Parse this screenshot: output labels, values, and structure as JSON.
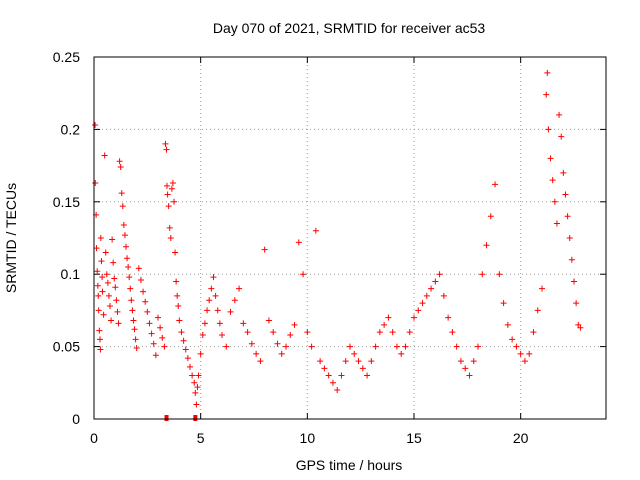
{
  "chart_data": {
    "type": "scatter",
    "title": "Day 070 of 2021, SRMTID for receiver ac53",
    "xlabel": "GPS time / hours",
    "ylabel": "SRMTID / TECUs",
    "xlim": [
      0,
      24
    ],
    "ylim": [
      0,
      0.25
    ],
    "x_ticks": [
      0,
      5,
      10,
      15,
      20
    ],
    "x_tick_labels": [
      "0",
      "5",
      "10",
      "15",
      "20"
    ],
    "y_ticks": [
      0,
      0.05,
      0.1,
      0.15,
      0.2,
      0.25
    ],
    "y_tick_labels": [
      "0",
      "0.05",
      "0.1",
      "0.15",
      "0.2",
      "0.25"
    ],
    "grid": true,
    "marker": "+",
    "color": "#ff0000",
    "zero_markers": [
      {
        "x": 3.4,
        "y": 0
      },
      {
        "x": 4.75,
        "y": 0
      }
    ],
    "series": [
      {
        "name": "SRMTID",
        "points": [
          [
            0.05,
            0.203
          ],
          [
            0.06,
            0.163
          ],
          [
            0.1,
            0.141
          ],
          [
            0.12,
            0.118
          ],
          [
            0.15,
            0.102
          ],
          [
            0.18,
            0.092
          ],
          [
            0.2,
            0.085
          ],
          [
            0.22,
            0.075
          ],
          [
            0.25,
            0.061
          ],
          [
            0.28,
            0.055
          ],
          [
            0.3,
            0.048
          ],
          [
            0.32,
            0.125
          ],
          [
            0.35,
            0.109
          ],
          [
            0.38,
            0.098
          ],
          [
            0.4,
            0.088
          ],
          [
            0.45,
            0.072
          ],
          [
            0.5,
            0.182
          ],
          [
            0.55,
            0.115
          ],
          [
            0.6,
            0.1
          ],
          [
            0.65,
            0.094
          ],
          [
            0.7,
            0.085
          ],
          [
            0.75,
            0.078
          ],
          [
            0.8,
            0.068
          ],
          [
            0.85,
            0.124
          ],
          [
            0.9,
            0.108
          ],
          [
            0.95,
            0.097
          ],
          [
            1.0,
            0.091
          ],
          [
            1.05,
            0.082
          ],
          [
            1.1,
            0.074
          ],
          [
            1.15,
            0.066
          ],
          [
            1.2,
            0.178
          ],
          [
            1.25,
            0.174
          ],
          [
            1.3,
            0.156
          ],
          [
            1.35,
            0.147
          ],
          [
            1.4,
            0.134
          ],
          [
            1.45,
            0.127
          ],
          [
            1.5,
            0.119
          ],
          [
            1.55,
            0.111
          ],
          [
            1.6,
            0.105
          ],
          [
            1.65,
            0.098
          ],
          [
            1.7,
            0.09
          ],
          [
            1.75,
            0.082
          ],
          [
            1.8,
            0.075
          ],
          [
            1.85,
            0.068
          ],
          [
            1.9,
            0.062
          ],
          [
            1.95,
            0.055
          ],
          [
            2.0,
            0.049
          ],
          [
            2.1,
            0.104
          ],
          [
            2.2,
            0.096
          ],
          [
            2.3,
            0.088
          ],
          [
            2.4,
            0.081
          ],
          [
            2.5,
            0.074
          ],
          [
            2.6,
            0.066
          ],
          [
            2.7,
            0.059
          ],
          [
            2.8,
            0.052
          ],
          [
            2.9,
            0.044
          ],
          [
            3.0,
            0.07
          ],
          [
            3.1,
            0.063
          ],
          [
            3.2,
            0.056
          ],
          [
            3.3,
            0.05
          ],
          [
            3.35,
            0.19
          ],
          [
            3.4,
            0.186
          ],
          [
            3.42,
            0.161
          ],
          [
            3.45,
            0.155
          ],
          [
            3.5,
            0.147
          ],
          [
            3.55,
            0.132
          ],
          [
            3.6,
            0.125
          ],
          [
            3.65,
            0.159
          ],
          [
            3.7,
            0.163
          ],
          [
            3.75,
            0.15
          ],
          [
            3.8,
            0.115
          ],
          [
            3.85,
            0.095
          ],
          [
            3.9,
            0.085
          ],
          [
            3.95,
            0.078
          ],
          [
            4.0,
            0.068
          ],
          [
            4.1,
            0.06
          ],
          [
            4.2,
            0.054
          ],
          [
            4.3,
            0.048
          ],
          [
            4.4,
            0.042
          ],
          [
            4.5,
            0.036
          ],
          [
            4.6,
            0.03
          ],
          [
            4.7,
            0.025
          ],
          [
            4.75,
            0.018
          ],
          [
            4.8,
            0.01
          ],
          [
            4.85,
            0.022
          ],
          [
            4.9,
            0.03
          ],
          [
            5.0,
            0.045
          ],
          [
            5.1,
            0.058
          ],
          [
            5.2,
            0.066
          ],
          [
            5.3,
            0.075
          ],
          [
            5.4,
            0.082
          ],
          [
            5.5,
            0.09
          ],
          [
            5.6,
            0.098
          ],
          [
            5.7,
            0.085
          ],
          [
            5.8,
            0.075
          ],
          [
            5.9,
            0.066
          ],
          [
            6.0,
            0.058
          ],
          [
            6.2,
            0.05
          ],
          [
            6.4,
            0.074
          ],
          [
            6.6,
            0.082
          ],
          [
            6.8,
            0.09
          ],
          [
            7.0,
            0.066
          ],
          [
            7.2,
            0.06
          ],
          [
            7.4,
            0.052
          ],
          [
            7.6,
            0.045
          ],
          [
            7.8,
            0.04
          ],
          [
            8.0,
            0.117
          ],
          [
            8.2,
            0.068
          ],
          [
            8.4,
            0.06
          ],
          [
            8.6,
            0.052
          ],
          [
            8.8,
            0.045
          ],
          [
            9.0,
            0.05
          ],
          [
            9.2,
            0.058
          ],
          [
            9.4,
            0.065
          ],
          [
            9.6,
            0.122
          ],
          [
            9.8,
            0.1
          ],
          [
            10.0,
            0.06
          ],
          [
            10.2,
            0.05
          ],
          [
            10.4,
            0.13
          ],
          [
            10.6,
            0.04
          ],
          [
            10.8,
            0.035
          ],
          [
            11.0,
            0.03
          ],
          [
            11.2,
            0.025
          ],
          [
            11.4,
            0.02
          ],
          [
            11.6,
            0.03
          ],
          [
            11.8,
            0.04
          ],
          [
            12.0,
            0.05
          ],
          [
            12.2,
            0.045
          ],
          [
            12.4,
            0.04
          ],
          [
            12.6,
            0.035
          ],
          [
            12.8,
            0.03
          ],
          [
            13.0,
            0.04
          ],
          [
            13.2,
            0.05
          ],
          [
            13.4,
            0.06
          ],
          [
            13.6,
            0.065
          ],
          [
            13.8,
            0.07
          ],
          [
            14.0,
            0.06
          ],
          [
            14.2,
            0.05
          ],
          [
            14.4,
            0.045
          ],
          [
            14.6,
            0.05
          ],
          [
            14.8,
            0.06
          ],
          [
            15.0,
            0.07
          ],
          [
            15.2,
            0.075
          ],
          [
            15.4,
            0.08
          ],
          [
            15.6,
            0.085
          ],
          [
            15.8,
            0.09
          ],
          [
            16.0,
            0.095
          ],
          [
            16.2,
            0.1
          ],
          [
            16.4,
            0.085
          ],
          [
            16.6,
            0.07
          ],
          [
            16.8,
            0.06
          ],
          [
            17.0,
            0.05
          ],
          [
            17.2,
            0.04
          ],
          [
            17.4,
            0.035
          ],
          [
            17.6,
            0.03
          ],
          [
            17.8,
            0.04
          ],
          [
            18.0,
            0.05
          ],
          [
            18.2,
            0.1
          ],
          [
            18.4,
            0.12
          ],
          [
            18.6,
            0.14
          ],
          [
            18.8,
            0.162
          ],
          [
            19.0,
            0.1
          ],
          [
            19.2,
            0.08
          ],
          [
            19.4,
            0.065
          ],
          [
            19.6,
            0.055
          ],
          [
            19.8,
            0.05
          ],
          [
            20.0,
            0.045
          ],
          [
            20.2,
            0.04
          ],
          [
            20.4,
            0.045
          ],
          [
            20.6,
            0.06
          ],
          [
            20.8,
            0.075
          ],
          [
            21.0,
            0.09
          ],
          [
            21.2,
            0.224
          ],
          [
            21.25,
            0.239
          ],
          [
            21.3,
            0.2
          ],
          [
            21.4,
            0.18
          ],
          [
            21.5,
            0.165
          ],
          [
            21.6,
            0.15
          ],
          [
            21.7,
            0.135
          ],
          [
            21.8,
            0.21
          ],
          [
            21.9,
            0.195
          ],
          [
            22.0,
            0.17
          ],
          [
            22.1,
            0.155
          ],
          [
            22.2,
            0.14
          ],
          [
            22.3,
            0.125
          ],
          [
            22.4,
            0.11
          ],
          [
            22.5,
            0.095
          ],
          [
            22.6,
            0.08
          ],
          [
            22.7,
            0.065
          ],
          [
            22.8,
            0.063
          ]
        ]
      }
    ]
  }
}
